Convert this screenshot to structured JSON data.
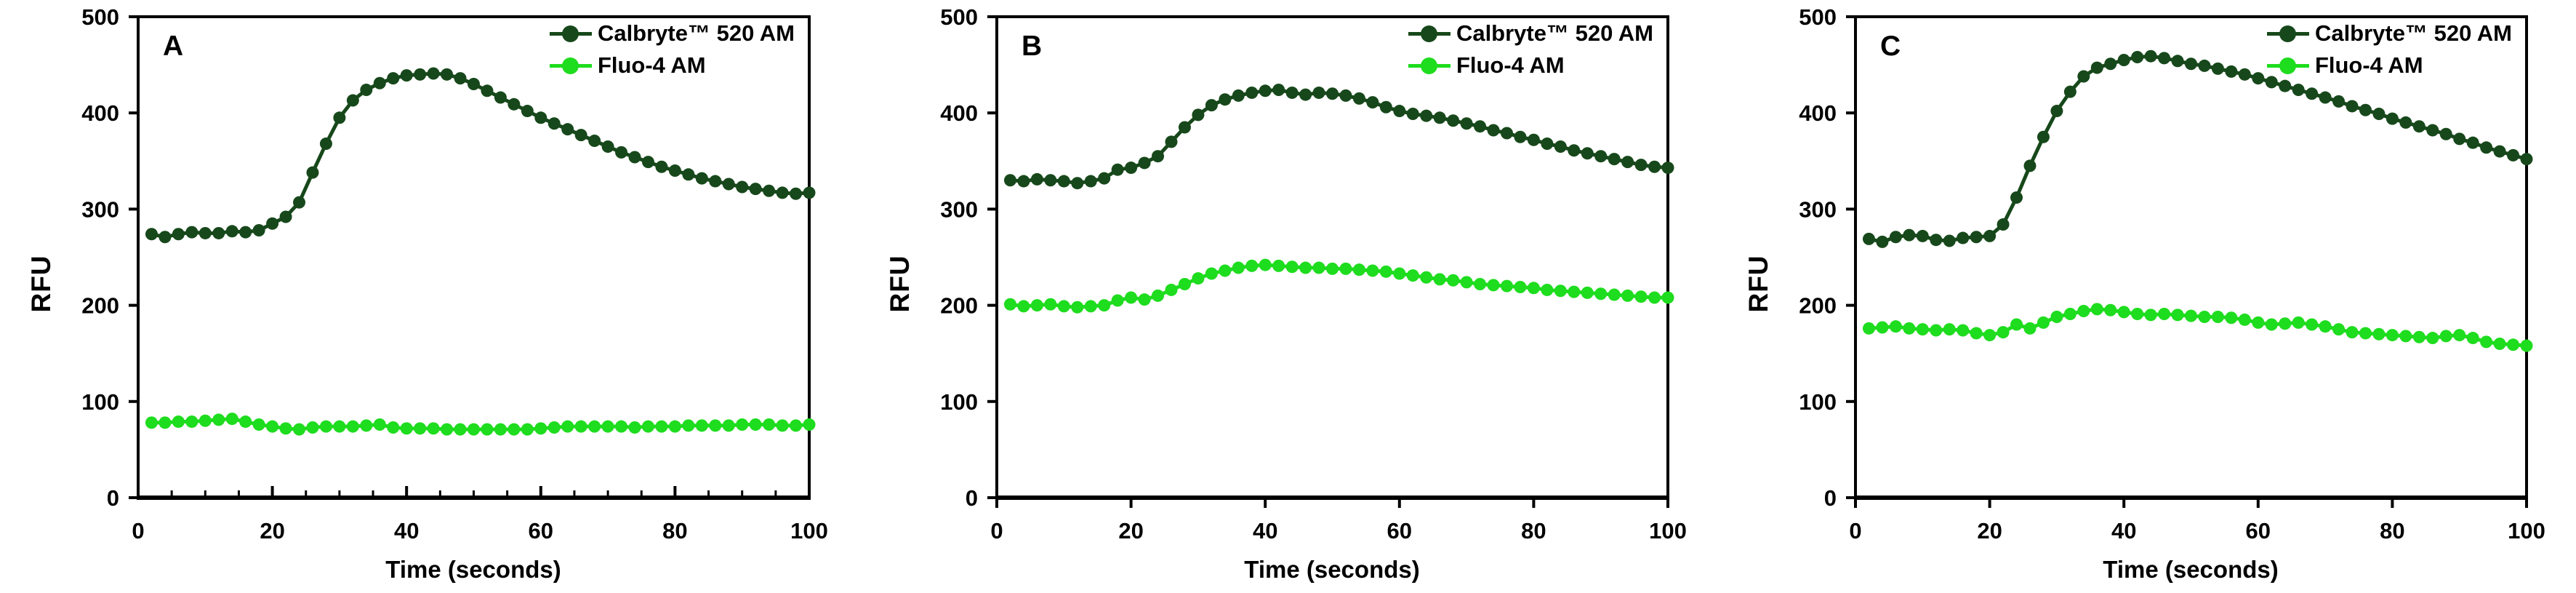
{
  "figure": {
    "background": "#ffffff",
    "axis_color": "#000000",
    "colors": {
      "calbryte": "#17481b",
      "fluo4": "#1edc1e"
    }
  },
  "chart_data": [
    {
      "type": "line",
      "panel": "A",
      "xlabel": "Time (seconds)",
      "ylabel": "RFU",
      "xlim": [
        0,
        100
      ],
      "ylim": [
        0,
        500
      ],
      "x_ticks": [
        0,
        20,
        40,
        60,
        80,
        100
      ],
      "y_ticks": [
        0,
        100,
        200,
        300,
        400,
        500
      ],
      "x_minor_step": 5,
      "x_tick_style": "inside",
      "grid": "off",
      "legend_position": "top-right",
      "x": [
        2,
        4,
        6,
        8,
        10,
        12,
        14,
        16,
        18,
        20,
        22,
        24,
        26,
        28,
        30,
        32,
        34,
        36,
        38,
        40,
        42,
        44,
        46,
        48,
        50,
        52,
        54,
        56,
        58,
        60,
        62,
        64,
        66,
        68,
        70,
        72,
        74,
        76,
        78,
        80,
        82,
        84,
        86,
        88,
        90,
        92,
        94,
        96,
        98,
        100
      ],
      "series": [
        {
          "name": "Calbryte™ 520 AM",
          "color": "#17481b",
          "values": [
            274,
            271,
            274,
            276,
            275,
            275,
            277,
            276,
            278,
            285,
            292,
            307,
            338,
            368,
            395,
            413,
            424,
            431,
            436,
            439,
            440,
            441,
            440,
            436,
            430,
            423,
            416,
            409,
            402,
            395,
            389,
            383,
            377,
            371,
            365,
            359,
            354,
            349,
            344,
            340,
            336,
            332,
            329,
            326,
            323,
            321,
            319,
            317,
            316,
            317
          ]
        },
        {
          "name": "Fluo-4 AM",
          "color": "#1edc1e",
          "values": [
            78,
            78,
            79,
            79,
            80,
            81,
            82,
            79,
            76,
            74,
            72,
            71,
            73,
            74,
            74,
            74,
            75,
            76,
            73,
            72,
            72,
            72,
            71,
            71,
            71,
            71,
            71,
            71,
            71,
            72,
            73,
            74,
            74,
            74,
            74,
            74,
            73,
            74,
            74,
            74,
            75,
            75,
            75,
            75,
            76,
            76,
            76,
            75,
            75,
            76
          ]
        }
      ]
    },
    {
      "type": "line",
      "panel": "B",
      "xlabel": "Time (seconds)",
      "ylabel": "RFU",
      "xlim": [
        0,
        100
      ],
      "ylim": [
        0,
        500
      ],
      "x_ticks": [
        0,
        20,
        40,
        60,
        80,
        100
      ],
      "y_ticks": [
        0,
        100,
        200,
        300,
        400,
        500
      ],
      "x_minor_step": 20,
      "x_tick_style": "outside",
      "grid": "off",
      "legend_position": "top-right",
      "x": [
        2,
        4,
        6,
        8,
        10,
        12,
        14,
        16,
        18,
        20,
        22,
        24,
        26,
        28,
        30,
        32,
        34,
        36,
        38,
        40,
        42,
        44,
        46,
        48,
        50,
        52,
        54,
        56,
        58,
        60,
        62,
        64,
        66,
        68,
        70,
        72,
        74,
        76,
        78,
        80,
        82,
        84,
        86,
        88,
        90,
        92,
        94,
        96,
        98,
        100
      ],
      "series": [
        {
          "name": "Calbryte™ 520 AM",
          "color": "#17481b",
          "values": [
            330,
            329,
            331,
            330,
            329,
            327,
            329,
            332,
            341,
            343,
            348,
            355,
            370,
            385,
            398,
            408,
            414,
            418,
            421,
            423,
            424,
            421,
            419,
            421,
            420,
            418,
            415,
            411,
            406,
            402,
            399,
            397,
            395,
            392,
            389,
            386,
            382,
            379,
            375,
            372,
            368,
            365,
            361,
            358,
            355,
            352,
            349,
            346,
            344,
            343
          ]
        },
        {
          "name": "Fluo-4 AM",
          "color": "#1edc1e",
          "values": [
            201,
            199,
            200,
            201,
            199,
            198,
            199,
            200,
            205,
            208,
            206,
            210,
            216,
            222,
            228,
            233,
            236,
            239,
            241,
            242,
            241,
            240,
            239,
            239,
            238,
            238,
            237,
            236,
            235,
            233,
            231,
            229,
            227,
            226,
            224,
            222,
            221,
            220,
            219,
            218,
            216,
            215,
            214,
            213,
            212,
            211,
            210,
            209,
            208,
            208
          ]
        }
      ]
    },
    {
      "type": "line",
      "panel": "C",
      "xlabel": "Time (seconds)",
      "ylabel": "RFU",
      "xlim": [
        0,
        100
      ],
      "ylim": [
        0,
        500
      ],
      "x_ticks": [
        0,
        20,
        40,
        60,
        80,
        100
      ],
      "y_ticks": [
        0,
        100,
        200,
        300,
        400,
        500
      ],
      "x_minor_step": 20,
      "x_tick_style": "outside",
      "grid": "off",
      "legend_position": "top-right",
      "x": [
        2,
        4,
        6,
        8,
        10,
        12,
        14,
        16,
        18,
        20,
        22,
        24,
        26,
        28,
        30,
        32,
        34,
        36,
        38,
        40,
        42,
        44,
        46,
        48,
        50,
        52,
        54,
        56,
        58,
        60,
        62,
        64,
        66,
        68,
        70,
        72,
        74,
        76,
        78,
        80,
        82,
        84,
        86,
        88,
        90,
        92,
        94,
        96,
        98,
        100
      ],
      "series": [
        {
          "name": "Calbryte™ 520 AM",
          "color": "#17481b",
          "values": [
            269,
            266,
            271,
            273,
            272,
            268,
            267,
            270,
            271,
            272,
            284,
            312,
            345,
            375,
            402,
            422,
            438,
            447,
            451,
            455,
            458,
            459,
            457,
            454,
            451,
            449,
            446,
            443,
            440,
            436,
            432,
            428,
            424,
            420,
            416,
            412,
            407,
            403,
            399,
            394,
            390,
            386,
            382,
            378,
            373,
            369,
            364,
            360,
            356,
            352
          ]
        },
        {
          "name": "Fluo-4 AM",
          "color": "#1edc1e",
          "values": [
            176,
            177,
            178,
            176,
            175,
            174,
            175,
            174,
            171,
            169,
            172,
            180,
            176,
            182,
            188,
            191,
            194,
            196,
            195,
            193,
            191,
            190,
            191,
            190,
            189,
            188,
            188,
            187,
            185,
            182,
            180,
            181,
            182,
            180,
            178,
            175,
            172,
            171,
            170,
            169,
            168,
            167,
            166,
            168,
            169,
            166,
            162,
            160,
            159,
            158
          ]
        }
      ]
    }
  ]
}
